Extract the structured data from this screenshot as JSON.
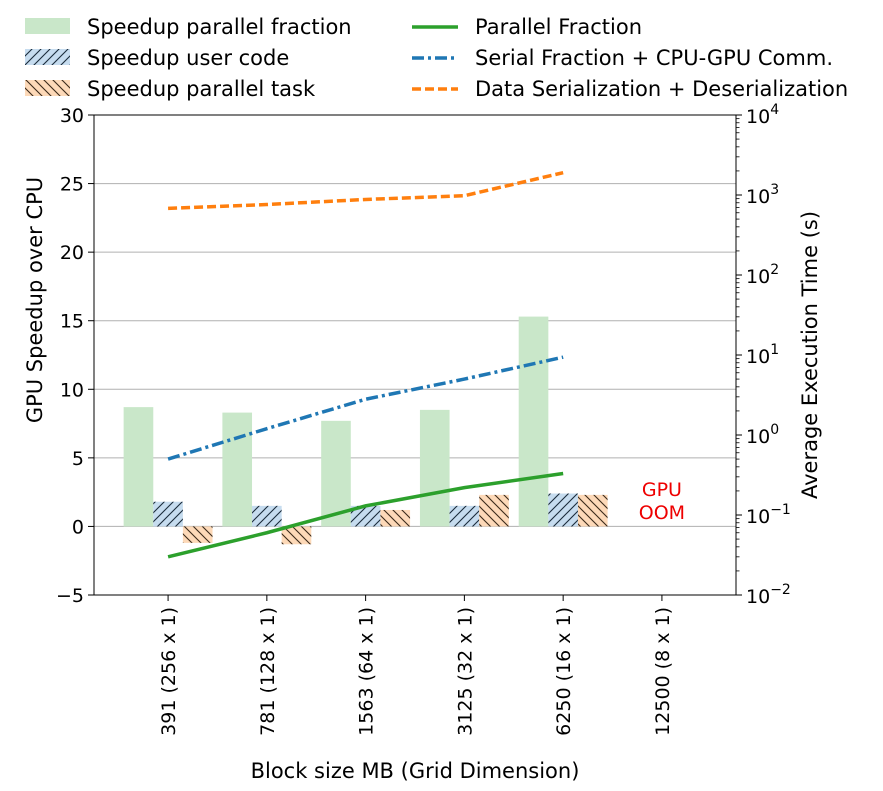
{
  "chart_data": {
    "type": "bar",
    "categories": [
      "391 (256 x 1)",
      "781 (128 x 1)",
      "1563 (64 x 1)",
      "3125 (32 x 1)",
      "6250 (16 x 1)",
      "12500 (8 x 1)"
    ],
    "xlabel": "Block size MB (Grid Dimension)",
    "ylabel": "GPU Speedup over CPU",
    "ylim": [
      -5,
      30
    ],
    "yticks": [
      "−5",
      "0",
      "5",
      "10",
      "15",
      "20",
      "25",
      "30"
    ],
    "y2label": "Average Execution Time (s)",
    "y2scale": "log",
    "y2lim": [
      0.01,
      10000
    ],
    "y2ticks": [
      {
        "base": "10",
        "exp": "−2",
        "value": 0.01
      },
      {
        "base": "10",
        "exp": "−1",
        "value": 0.1
      },
      {
        "base": "10",
        "exp": "0",
        "value": 1
      },
      {
        "base": "10",
        "exp": "1",
        "value": 10
      },
      {
        "base": "10",
        "exp": "2",
        "value": 100
      },
      {
        "base": "10",
        "exp": "3",
        "value": 1000
      },
      {
        "base": "10",
        "exp": "4",
        "value": 10000
      }
    ],
    "grid": "horizontal",
    "legend_placement": "top",
    "bar_series": [
      {
        "name": "Speedup parallel fraction",
        "color": "#c9e7c9",
        "pattern": "solid",
        "values": [
          8.7,
          8.3,
          7.7,
          8.5,
          15.3,
          null
        ]
      },
      {
        "name": "Speedup user code",
        "color": "#c6dcef",
        "pattern": "forward-hatch",
        "values": [
          1.8,
          1.5,
          1.5,
          1.5,
          2.4,
          null
        ]
      },
      {
        "name": "Speedup parallel task",
        "color": "#fdd9b8",
        "pattern": "back-hatch",
        "values": [
          -1.2,
          -1.3,
          1.2,
          2.3,
          2.3,
          null
        ]
      }
    ],
    "line_series": [
      {
        "name": "Parallel Fraction",
        "axis": "right",
        "color": "#2ca02c",
        "style": "solid",
        "values": [
          0.03,
          0.06,
          0.13,
          0.22,
          0.33,
          null
        ]
      },
      {
        "name": "Serial Fraction + CPU-GPU Comm.",
        "axis": "right",
        "color": "#1f77b4",
        "style": "dashdot",
        "values": [
          0.5,
          1.2,
          2.8,
          5.0,
          9.4,
          null
        ]
      },
      {
        "name": "Data Serialization + Deserialization",
        "axis": "right",
        "color": "#ff7f0e",
        "style": "dashed",
        "values": [
          680,
          760,
          880,
          980,
          1900,
          null
        ]
      }
    ],
    "annotations": [
      {
        "category": "12500 (8 x 1)",
        "lines": [
          "GPU",
          "OOM"
        ],
        "color": "#ee0000"
      }
    ]
  }
}
